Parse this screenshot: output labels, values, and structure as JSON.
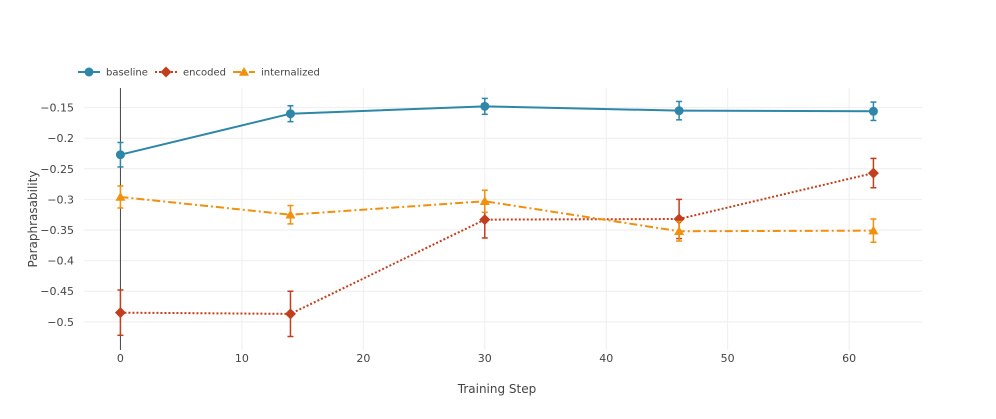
{
  "chart_data": {
    "type": "line",
    "title": "",
    "xlabel": "Training Step",
    "ylabel": "Paraphrasability",
    "xlim": [
      -3,
      66
    ],
    "ylim": [
      -0.546,
      -0.118
    ],
    "xticks": [
      0,
      10,
      20,
      30,
      40,
      50,
      60
    ],
    "xtick_labels": [
      "0",
      "10",
      "20",
      "30",
      "40",
      "50",
      "60"
    ],
    "yticks": [
      -0.15,
      -0.2,
      -0.25,
      -0.3,
      -0.35,
      -0.4,
      -0.45,
      -0.5
    ],
    "ytick_labels": [
      "−0.15",
      "−0.2",
      "−0.25",
      "−0.3",
      "−0.35",
      "−0.4",
      "−0.45",
      "−0.5"
    ],
    "grid": true,
    "legend_position": "top-left, horizontal",
    "x": [
      0,
      14,
      30,
      46,
      62
    ],
    "series": [
      {
        "name": "baseline",
        "color": "#2e86a8",
        "marker": "circle",
        "dash": "solid",
        "values": [
          -0.227,
          -0.16,
          -0.148,
          -0.155,
          -0.156
        ],
        "errors": [
          0.02,
          0.013,
          0.013,
          0.015,
          0.015
        ]
      },
      {
        "name": "encoded",
        "color": "#c13f1f",
        "marker": "diamond",
        "dash": "dotted",
        "values": [
          -0.485,
          -0.487,
          -0.333,
          -0.332,
          -0.257
        ],
        "errors": [
          0.037,
          0.037,
          0.03,
          0.032,
          0.024
        ]
      },
      {
        "name": "internalized",
        "color": "#f0900c",
        "marker": "triangle",
        "dash": "dashdot",
        "values": [
          -0.296,
          -0.325,
          -0.303,
          -0.352,
          -0.351
        ],
        "errors": [
          0.018,
          0.015,
          0.018,
          0.016,
          0.019
        ]
      }
    ]
  }
}
